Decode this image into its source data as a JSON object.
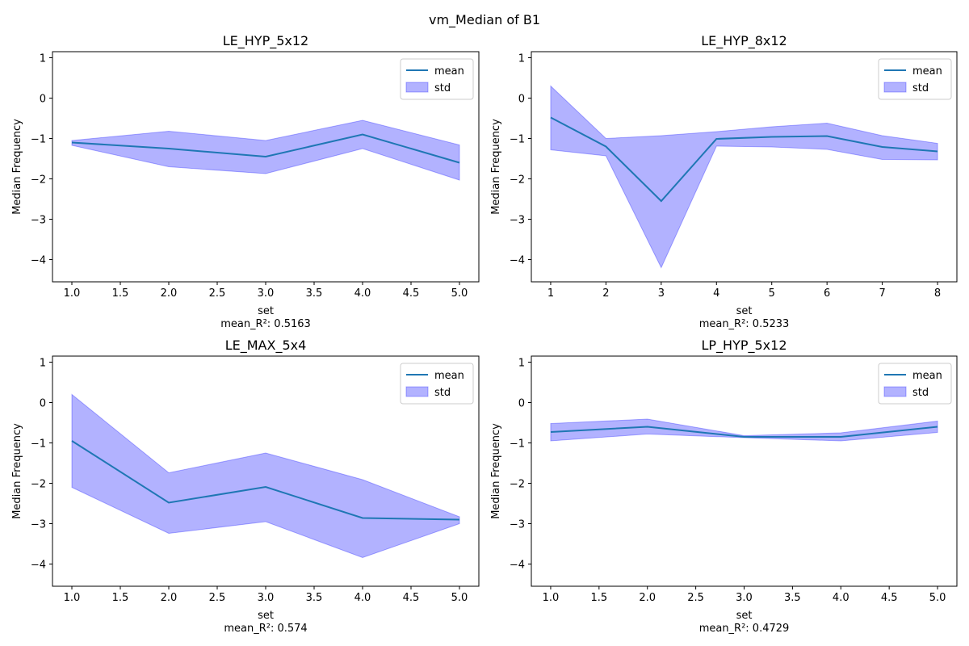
{
  "figure_title": "vm_Median of B1",
  "colors": {
    "mean_line": "#1f77b4",
    "std_fill": "#0000ff",
    "std_fill_opacity": 0.3,
    "axis": "#000000",
    "legend_border": "#cccccc"
  },
  "chart_data": [
    {
      "type": "line",
      "title": "LE_HYP_5x12",
      "xlabel": "set",
      "ylabel": "Median Frequency",
      "footer": "mean_R²: 0.5163",
      "xlim": [
        0.8,
        5.2
      ],
      "ylim": [
        -4.55,
        1.15
      ],
      "xticks": [
        1.0,
        1.5,
        2.0,
        2.5,
        3.0,
        3.5,
        4.0,
        4.5,
        5.0
      ],
      "xtick_labels": [
        "1.0",
        "1.5",
        "2.0",
        "2.5",
        "3.0",
        "3.5",
        "4.0",
        "4.5",
        "5.0"
      ],
      "yticks": [
        1,
        0,
        -1,
        -2,
        -3,
        -4
      ],
      "ytick_labels": [
        "1",
        "0",
        "−1",
        "−2",
        "−3",
        "−4"
      ],
      "legend": [
        "mean",
        "std"
      ],
      "legend_position": "top-right",
      "x": [
        1,
        2,
        3,
        4,
        5
      ],
      "mean": [
        -1.1,
        -1.25,
        -1.45,
        -0.9,
        -1.6
      ],
      "std_upper": [
        -1.05,
        -0.82,
        -1.05,
        -0.55,
        -1.16
      ],
      "std_lower": [
        -1.17,
        -1.7,
        -1.87,
        -1.25,
        -2.03
      ]
    },
    {
      "type": "line",
      "title": "LE_HYP_8x12",
      "xlabel": "set",
      "ylabel": "Median Frequency",
      "footer": "mean_R²: 0.5233",
      "xlim": [
        0.65,
        8.35
      ],
      "ylim": [
        -4.55,
        1.15
      ],
      "xticks": [
        1,
        2,
        3,
        4,
        5,
        6,
        7,
        8
      ],
      "xtick_labels": [
        "1",
        "2",
        "3",
        "4",
        "5",
        "6",
        "7",
        "8"
      ],
      "yticks": [
        1,
        0,
        -1,
        -2,
        -3,
        -4
      ],
      "ytick_labels": [
        "1",
        "0",
        "−1",
        "−2",
        "−3",
        "−4"
      ],
      "legend": [
        "mean",
        "std"
      ],
      "legend_position": "top-right",
      "x": [
        1,
        2,
        3,
        4,
        5,
        6,
        7,
        8
      ],
      "mean": [
        -0.48,
        -1.2,
        -2.55,
        -1.01,
        -0.96,
        -0.94,
        -1.21,
        -1.32
      ],
      "std_upper": [
        0.3,
        -1.0,
        -0.93,
        -0.83,
        -0.71,
        -0.62,
        -0.93,
        -1.12
      ],
      "std_lower": [
        -1.28,
        -1.43,
        -4.2,
        -1.19,
        -1.21,
        -1.27,
        -1.52,
        -1.53
      ]
    },
    {
      "type": "line",
      "title": "LE_MAX_5x4",
      "xlabel": "set",
      "ylabel": "Median Frequency",
      "footer": "mean_R²: 0.574",
      "xlim": [
        0.8,
        5.2
      ],
      "ylim": [
        -4.55,
        1.15
      ],
      "xticks": [
        1.0,
        1.5,
        2.0,
        2.5,
        3.0,
        3.5,
        4.0,
        4.5,
        5.0
      ],
      "xtick_labels": [
        "1.0",
        "1.5",
        "2.0",
        "2.5",
        "3.0",
        "3.5",
        "4.0",
        "4.5",
        "5.0"
      ],
      "yticks": [
        1,
        0,
        -1,
        -2,
        -3,
        -4
      ],
      "ytick_labels": [
        "1",
        "0",
        "−1",
        "−2",
        "−3",
        "−4"
      ],
      "legend": [
        "mean",
        "std"
      ],
      "legend_position": "top-right",
      "x": [
        1,
        2,
        3,
        4,
        5
      ],
      "mean": [
        -0.95,
        -2.48,
        -2.09,
        -2.86,
        -2.9
      ],
      "std_upper": [
        0.2,
        -1.74,
        -1.25,
        -1.91,
        -2.83
      ],
      "std_lower": [
        -2.1,
        -3.24,
        -2.95,
        -3.84,
        -3.0
      ]
    },
    {
      "type": "line",
      "title": "LP_HYP_5x12",
      "xlabel": "set",
      "ylabel": "Median Frequency",
      "footer": "mean_R²: 0.4729",
      "xlim": [
        0.8,
        5.2
      ],
      "ylim": [
        -4.55,
        1.15
      ],
      "xticks": [
        1.0,
        1.5,
        2.0,
        2.5,
        3.0,
        3.5,
        4.0,
        4.5,
        5.0
      ],
      "xtick_labels": [
        "1.0",
        "1.5",
        "2.0",
        "2.5",
        "3.0",
        "3.5",
        "4.0",
        "4.5",
        "5.0"
      ],
      "yticks": [
        1,
        0,
        -1,
        -2,
        -3,
        -4
      ],
      "ytick_labels": [
        "1",
        "0",
        "−1",
        "−2",
        "−3",
        "−4"
      ],
      "legend": [
        "mean",
        "std"
      ],
      "legend_position": "top-right",
      "x": [
        1,
        2,
        3,
        4,
        5
      ],
      "mean": [
        -0.73,
        -0.6,
        -0.85,
        -0.85,
        -0.6
      ],
      "std_upper": [
        -0.52,
        -0.41,
        -0.82,
        -0.75,
        -0.46
      ],
      "std_lower": [
        -0.95,
        -0.78,
        -0.87,
        -0.95,
        -0.74
      ]
    }
  ]
}
